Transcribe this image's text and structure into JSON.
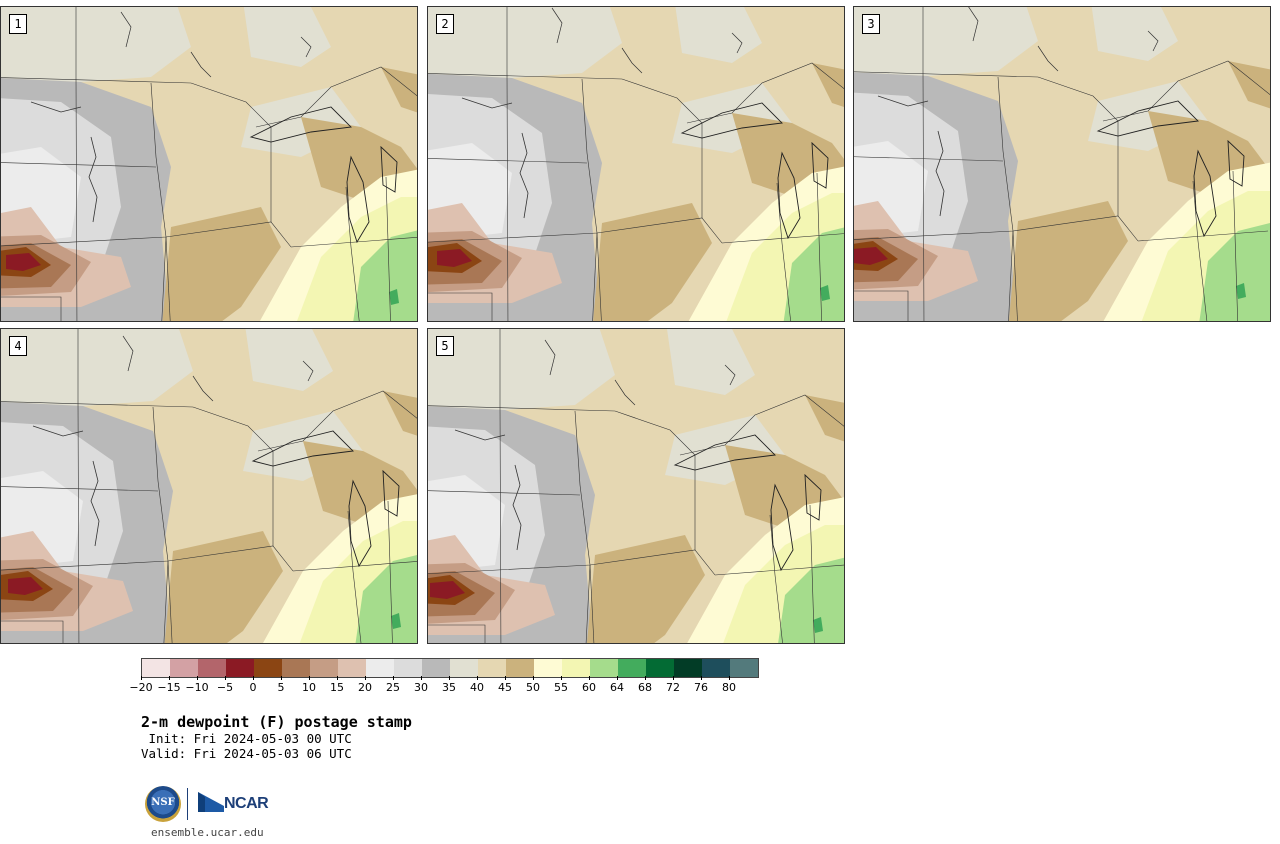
{
  "panels": [
    {
      "label": "1"
    },
    {
      "label": "2"
    },
    {
      "label": "3"
    },
    {
      "label": "4"
    },
    {
      "label": "5"
    }
  ],
  "colorbar": {
    "colors": [
      "#f3e4e4",
      "#d3a1a4",
      "#b3656b",
      "#8b1a24",
      "#8b4513",
      "#a97755",
      "#c59d85",
      "#dec1b0",
      "#ececec",
      "#dcdcdc",
      "#b9b9b9",
      "#e1e0d2",
      "#e5d7b2",
      "#cbb27d",
      "#fefbd4",
      "#f3f6b3",
      "#a5dc8c",
      "#43ac5d",
      "#036b34",
      "#023c26",
      "#1e4e5c",
      "#537a7c"
    ],
    "tick_labels": [
      "−20",
      "−15",
      "−10",
      "−5",
      "0",
      "5",
      "10",
      "15",
      "20",
      "25",
      "30",
      "35",
      "40",
      "45",
      "50",
      "55",
      "60",
      "64",
      "68",
      "72",
      "76",
      "80"
    ]
  },
  "title": "2-m dewpoint (F) postage stamp",
  "init": " Init: Fri 2024-05-03 00 UTC",
  "valid": "Valid: Fri 2024-05-03 06 UTC",
  "logos": {
    "nsf": "NSF",
    "ncar": "NCAR"
  },
  "footer_url": "ensemble.ucar.edu"
}
